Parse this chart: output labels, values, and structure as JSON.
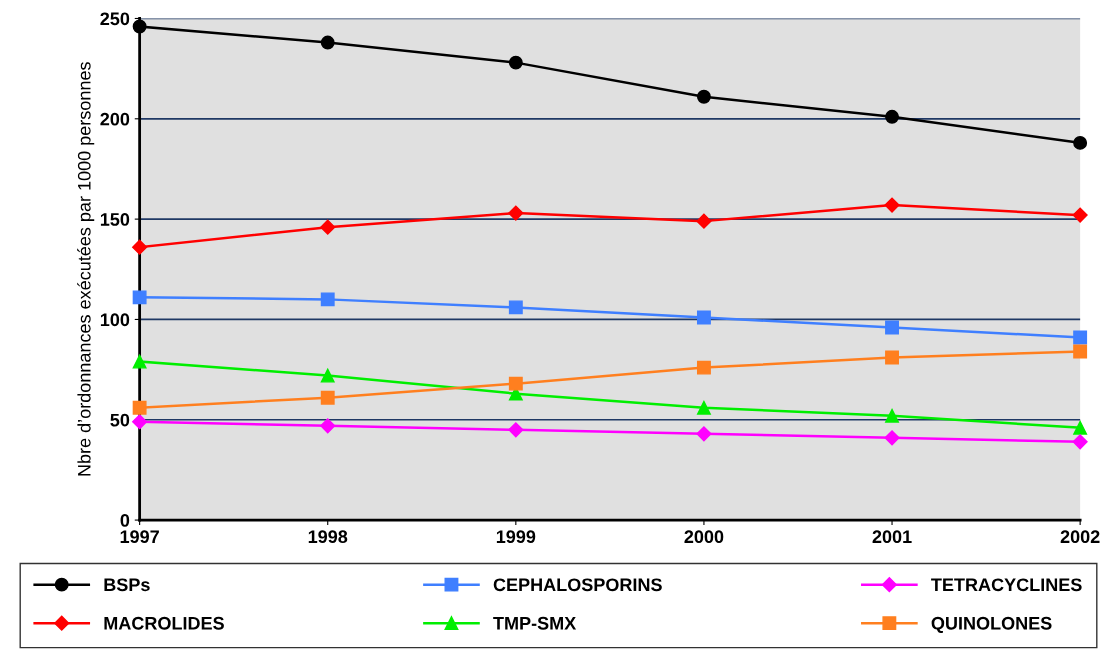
{
  "chart_data": {
    "type": "line",
    "ylabel": "Nbre d’ordonnances exécutées par 1000 personnes",
    "categories": [
      "1997",
      "1998",
      "1999",
      "2000",
      "2001",
      "2002"
    ],
    "ylim": [
      0,
      250
    ],
    "yticks": [
      0,
      50,
      100,
      150,
      200,
      250
    ],
    "grid": "y",
    "legend": "bottom",
    "series": [
      {
        "name": "BSPs",
        "color": "#000000",
        "marker": "circle",
        "values": [
          246,
          238,
          228,
          211,
          201,
          188
        ]
      },
      {
        "name": "MACROLIDES",
        "color": "#ff0000",
        "marker": "diamond",
        "values": [
          136,
          146,
          153,
          149,
          157,
          152
        ]
      },
      {
        "name": "CEPHALOSPORINS",
        "color": "#3f7fff",
        "marker": "square",
        "values": [
          111,
          110,
          106,
          101,
          96,
          91
        ]
      },
      {
        "name": "TMP-SMX",
        "color": "#00ee00",
        "marker": "triangle",
        "values": [
          79,
          72,
          63,
          56,
          52,
          46
        ]
      },
      {
        "name": "TETRACYCLINES",
        "color": "#ff00ff",
        "marker": "diamond",
        "values": [
          49,
          47,
          45,
          43,
          41,
          39
        ]
      },
      {
        "name": "QUINOLONES",
        "color": "#ff7f1f",
        "marker": "square",
        "values": [
          56,
          61,
          68,
          76,
          81,
          84
        ]
      }
    ]
  }
}
